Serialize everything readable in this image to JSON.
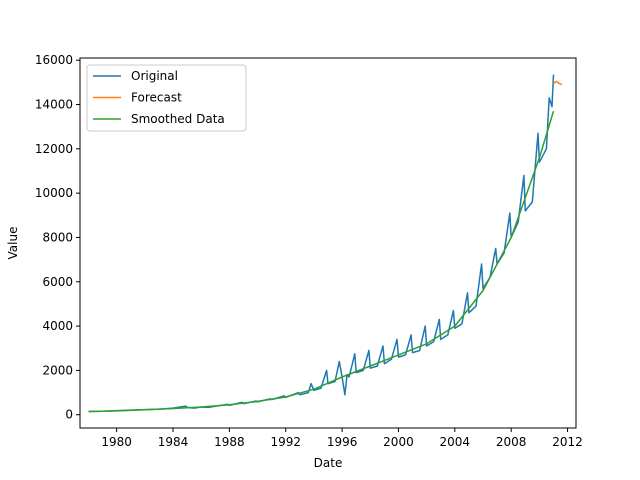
{
  "chart_data": {
    "type": "line",
    "xlabel": "Date",
    "ylabel": "Value",
    "xlim": [
      1977.4,
      2012.6
    ],
    "ylim": [
      -600,
      16100
    ],
    "xticks": [
      1980,
      1984,
      1988,
      1992,
      1996,
      2000,
      2004,
      2008,
      2012
    ],
    "yticks": [
      0,
      2000,
      4000,
      6000,
      8000,
      10000,
      12000,
      14000,
      16000
    ],
    "legend_position": "top-left",
    "series": [
      {
        "name": "Original",
        "color": "#1f77b4",
        "x": [
          1978.0,
          1979.0,
          1980.0,
          1981.0,
          1982.0,
          1983.0,
          1984.0,
          1984.9,
          1985.0,
          1985.5,
          1986.0,
          1986.5,
          1987.0,
          1987.9,
          1988.0,
          1988.9,
          1989.0,
          1989.9,
          1990.0,
          1990.9,
          1991.0,
          1991.9,
          1992.0,
          1992.9,
          1993.0,
          1993.6,
          1993.8,
          1994.0,
          1994.5,
          1994.9,
          1995.0,
          1995.5,
          1995.8,
          1996.0,
          1996.2,
          1996.35,
          1996.5,
          1996.9,
          1997.0,
          1997.5,
          1997.9,
          1998.0,
          1998.5,
          1998.9,
          1999.0,
          1999.5,
          1999.9,
          2000.0,
          2000.5,
          2000.9,
          2001.0,
          2001.5,
          2001.9,
          2002.0,
          2002.5,
          2002.9,
          2003.0,
          2003.5,
          2003.9,
          2004.0,
          2004.5,
          2004.9,
          2005.0,
          2005.5,
          2005.9,
          2006.0,
          2006.5,
          2006.9,
          2007.0,
          2007.5,
          2007.9,
          2008.0,
          2008.5,
          2008.9,
          2009.0,
          2009.5,
          2009.9,
          2010.0,
          2010.5,
          2010.7,
          2010.9,
          2011.0
        ],
        "y": [
          150,
          160,
          185,
          210,
          230,
          250,
          300,
          390,
          330,
          300,
          350,
          330,
          380,
          470,
          420,
          560,
          500,
          620,
          580,
          720,
          680,
          850,
          780,
          1000,
          900,
          1000,
          1400,
          1100,
          1200,
          2000,
          1400,
          1500,
          2400,
          1700,
          900,
          1800,
          1700,
          2750,
          1900,
          2000,
          2900,
          2100,
          2200,
          3100,
          2300,
          2500,
          3400,
          2600,
          2700,
          3600,
          2800,
          2900,
          4000,
          3100,
          3300,
          4300,
          3400,
          3600,
          4700,
          3900,
          4100,
          5500,
          4600,
          4900,
          6800,
          5700,
          6200,
          7500,
          6800,
          7300,
          9100,
          8000,
          8700,
          10800,
          9200,
          9600,
          12700,
          11400,
          12000,
          14300,
          13900,
          15350
        ]
      },
      {
        "name": "Forecast",
        "color": "#ff7f0e",
        "x": [
          2011.0,
          2011.2,
          2011.4,
          2011.6
        ],
        "y": [
          14950,
          15050,
          14950,
          14900
        ]
      },
      {
        "name": "Smoothed Data",
        "color": "#2ca02c",
        "x": [
          1978,
          1980,
          1982,
          1984,
          1986,
          1988,
          1990,
          1992,
          1994,
          1996,
          1998,
          2000,
          2002,
          2004,
          2006,
          2008,
          2009,
          2010,
          2011
        ],
        "y": [
          140,
          170,
          220,
          280,
          350,
          450,
          600,
          800,
          1150,
          1700,
          2200,
          2700,
          3200,
          4000,
          5600,
          8000,
          9800,
          11600,
          13700
        ]
      }
    ]
  }
}
